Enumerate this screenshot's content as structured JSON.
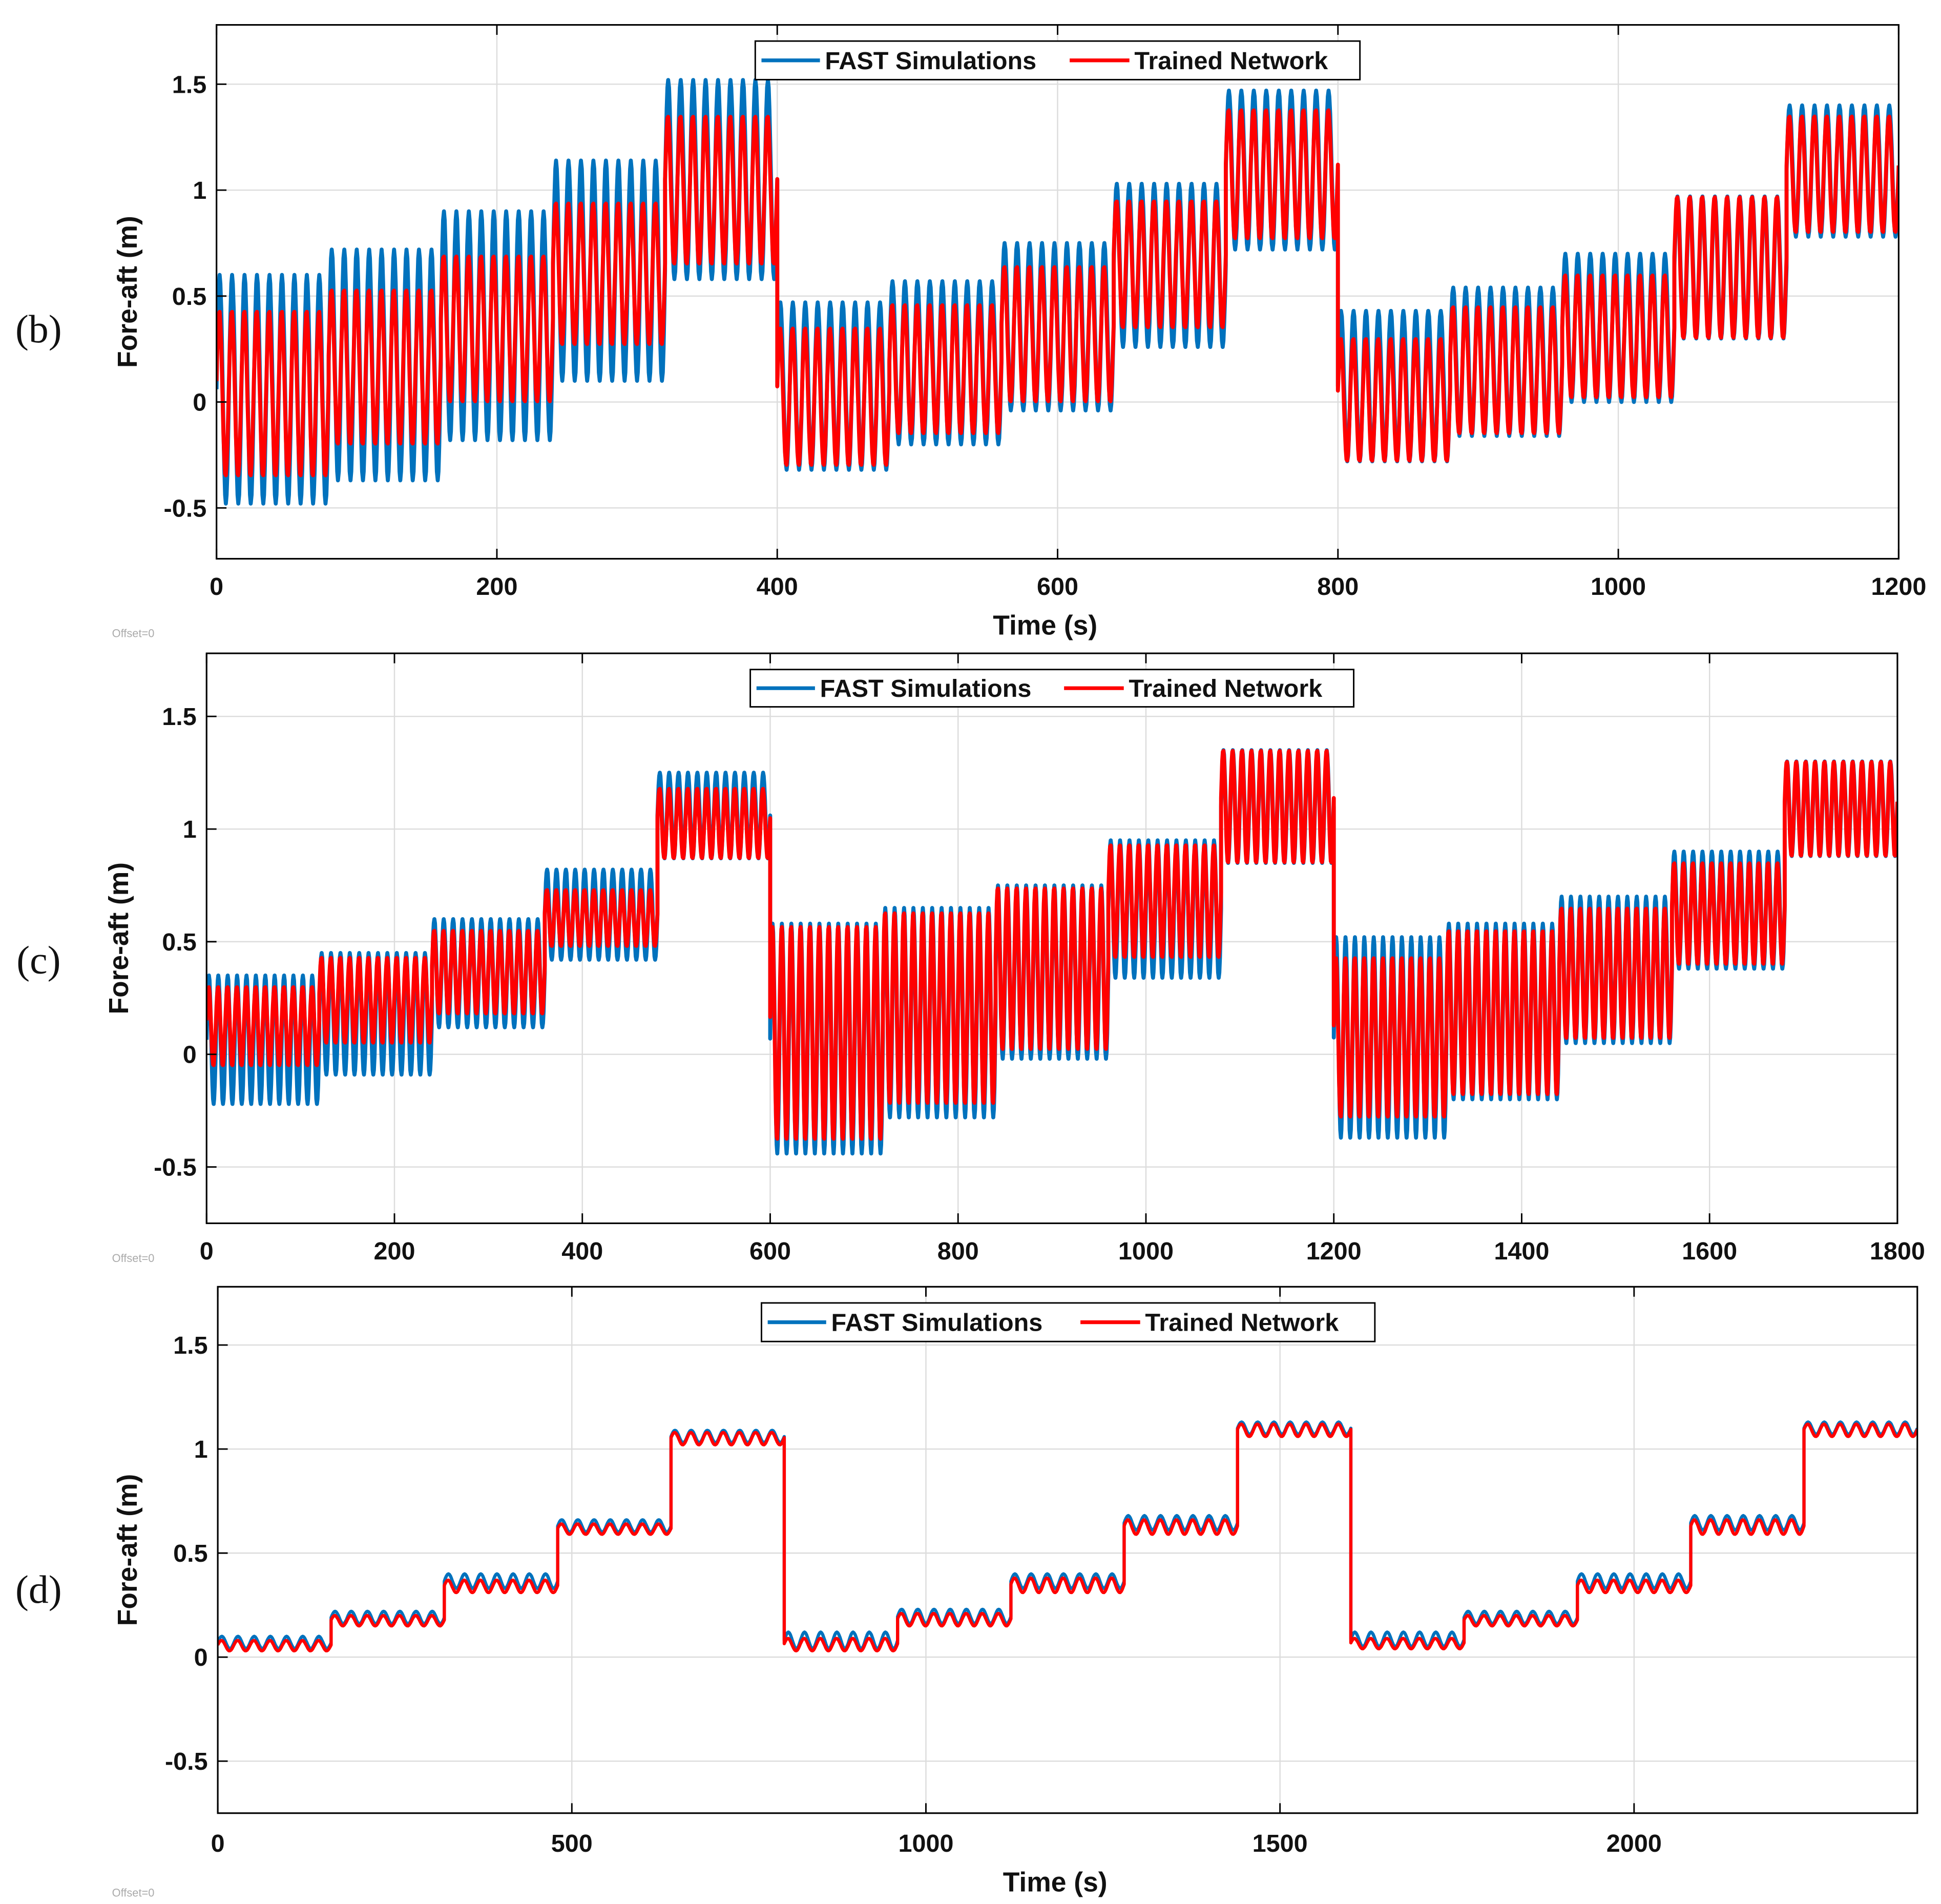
{
  "colors": {
    "fast": "#0072BD",
    "network": "#FF0000",
    "grid": "#DCDCDC"
  },
  "chart_data": [
    {
      "type": "line",
      "panel_label": "(b)",
      "xlabel": "Time (s)",
      "ylabel": "Fore-aft (m)",
      "offset_note": "Offset=0",
      "xlim": [
        0,
        1200
      ],
      "ylim": [
        -0.74,
        1.78
      ],
      "xticks": [
        0,
        200,
        400,
        600,
        800,
        1000,
        1200
      ],
      "yticks": [
        -0.5,
        0,
        0.5,
        1,
        1.5
      ],
      "ytick_labels": [
        "-0.5",
        "0",
        "0.5",
        "1",
        "1.5"
      ],
      "grid": true,
      "legend": {
        "placement": "top-center",
        "entries": [
          "FAST Simulations",
          "Trained Network"
        ]
      },
      "segment_length": 80,
      "cycles_per_segment": 9,
      "series": [
        {
          "name": "FAST Simulations",
          "ranges": [
            [
              -0.48,
              0.6
            ],
            [
              -0.37,
              0.72
            ],
            [
              -0.18,
              0.9
            ],
            [
              0.1,
              1.14
            ],
            [
              0.58,
              1.52
            ],
            [
              -0.32,
              0.47
            ],
            [
              -0.2,
              0.57
            ],
            [
              -0.04,
              0.75
            ],
            [
              0.26,
              1.03
            ],
            [
              0.72,
              1.47
            ],
            [
              -0.28,
              0.43
            ],
            [
              -0.16,
              0.54
            ],
            [
              0,
              0.7
            ],
            [
              0.3,
              0.97
            ],
            [
              0.78,
              1.4
            ]
          ]
        },
        {
          "name": "Trained Network",
          "ranges": [
            [
              -0.35,
              0.43
            ],
            [
              -0.2,
              0.53
            ],
            [
              0,
              0.69
            ],
            [
              0.27,
              0.94
            ],
            [
              0.65,
              1.35
            ],
            [
              -0.3,
              0.35
            ],
            [
              -0.15,
              0.46
            ],
            [
              0,
              0.64
            ],
            [
              0.35,
              0.95
            ],
            [
              0.77,
              1.38
            ],
            [
              -0.28,
              0.3
            ],
            [
              -0.15,
              0.45
            ],
            [
              0.02,
              0.6
            ],
            [
              0.3,
              0.97
            ],
            [
              0.8,
              1.35
            ]
          ]
        }
      ]
    },
    {
      "type": "line",
      "panel_label": "(c)",
      "xlabel": "",
      "ylabel": "Fore-aft (m)",
      "offset_note": "Offset=0",
      "xlim": [
        0,
        1800
      ],
      "ylim": [
        -0.75,
        1.78
      ],
      "xticks": [
        0,
        200,
        400,
        600,
        800,
        1000,
        1200,
        1400,
        1600,
        1800
      ],
      "yticks": [
        -0.5,
        0,
        0.5,
        1,
        1.5
      ],
      "ytick_labels": [
        "-0.5",
        "0",
        "0.5",
        "1",
        "1.5"
      ],
      "grid": true,
      "legend": {
        "placement": "top-center",
        "entries": [
          "FAST Simulations",
          "Trained Network"
        ]
      },
      "segment_length": 120,
      "cycles_per_segment": 12,
      "series": [
        {
          "name": "FAST Simulations",
          "ranges": [
            [
              -0.22,
              0.35
            ],
            [
              -0.09,
              0.45
            ],
            [
              0.12,
              0.6
            ],
            [
              0.42,
              0.82
            ],
            [
              0.87,
              1.25
            ],
            [
              -0.44,
              0.58
            ],
            [
              -0.28,
              0.65
            ],
            [
              -0.02,
              0.75
            ],
            [
              0.34,
              0.95
            ],
            [
              0.85,
              1.35
            ],
            [
              -0.37,
              0.52
            ],
            [
              -0.2,
              0.58
            ],
            [
              0.05,
              0.7
            ],
            [
              0.38,
              0.9
            ],
            [
              0.88,
              1.3
            ]
          ]
        },
        {
          "name": "Trained Network",
          "ranges": [
            [
              -0.05,
              0.3
            ],
            [
              0.05,
              0.43
            ],
            [
              0.18,
              0.55
            ],
            [
              0.48,
              0.73
            ],
            [
              0.87,
              1.18
            ],
            [
              -0.38,
              0.57
            ],
            [
              -0.22,
              0.63
            ],
            [
              0.02,
              0.74
            ],
            [
              0.43,
              0.93
            ],
            [
              0.85,
              1.35
            ],
            [
              -0.28,
              0.43
            ],
            [
              -0.18,
              0.55
            ],
            [
              0.07,
              0.65
            ],
            [
              0.4,
              0.85
            ],
            [
              0.88,
              1.3
            ]
          ]
        }
      ]
    },
    {
      "type": "line",
      "panel_label": "(d)",
      "xlabel": "Time (s)",
      "ylabel": "Fore-aft (m)",
      "offset_note": "Offset=0",
      "xlim": [
        0,
        2400
      ],
      "ylim": [
        -0.75,
        1.78
      ],
      "xticks": [
        0,
        500,
        1000,
        1500,
        2000
      ],
      "yticks": [
        -0.5,
        0,
        0.5,
        1,
        1.5
      ],
      "ytick_labels": [
        "-0.5",
        "0",
        "0.5",
        "1",
        "1.5"
      ],
      "grid": true,
      "legend": {
        "placement": "top-center",
        "entries": [
          "FAST Simulations",
          "Trained Network"
        ]
      },
      "segment_length": 160,
      "cycles_per_segment": 7,
      "series": [
        {
          "name": "FAST Simulations",
          "ranges": [
            [
              0.04,
              0.1
            ],
            [
              0.16,
              0.22
            ],
            [
              0.33,
              0.4
            ],
            [
              0.6,
              0.66
            ],
            [
              1.03,
              1.09
            ],
            [
              0.04,
              0.12
            ],
            [
              0.16,
              0.23
            ],
            [
              0.33,
              0.4
            ],
            [
              0.61,
              0.68
            ],
            [
              1.07,
              1.13
            ],
            [
              0.05,
              0.12
            ],
            [
              0.16,
              0.22
            ],
            [
              0.33,
              0.4
            ],
            [
              0.61,
              0.68
            ],
            [
              1.07,
              1.13
            ]
          ]
        },
        {
          "name": "Trained Network",
          "ranges": [
            [
              0.03,
              0.08
            ],
            [
              0.15,
              0.2
            ],
            [
              0.31,
              0.37
            ],
            [
              0.59,
              0.64
            ],
            [
              1.02,
              1.08
            ],
            [
              0.03,
              0.09
            ],
            [
              0.15,
              0.21
            ],
            [
              0.31,
              0.38
            ],
            [
              0.59,
              0.66
            ],
            [
              1.06,
              1.12
            ],
            [
              0.04,
              0.09
            ],
            [
              0.15,
              0.2
            ],
            [
              0.31,
              0.37
            ],
            [
              0.59,
              0.66
            ],
            [
              1.06,
              1.12
            ]
          ]
        }
      ]
    }
  ]
}
